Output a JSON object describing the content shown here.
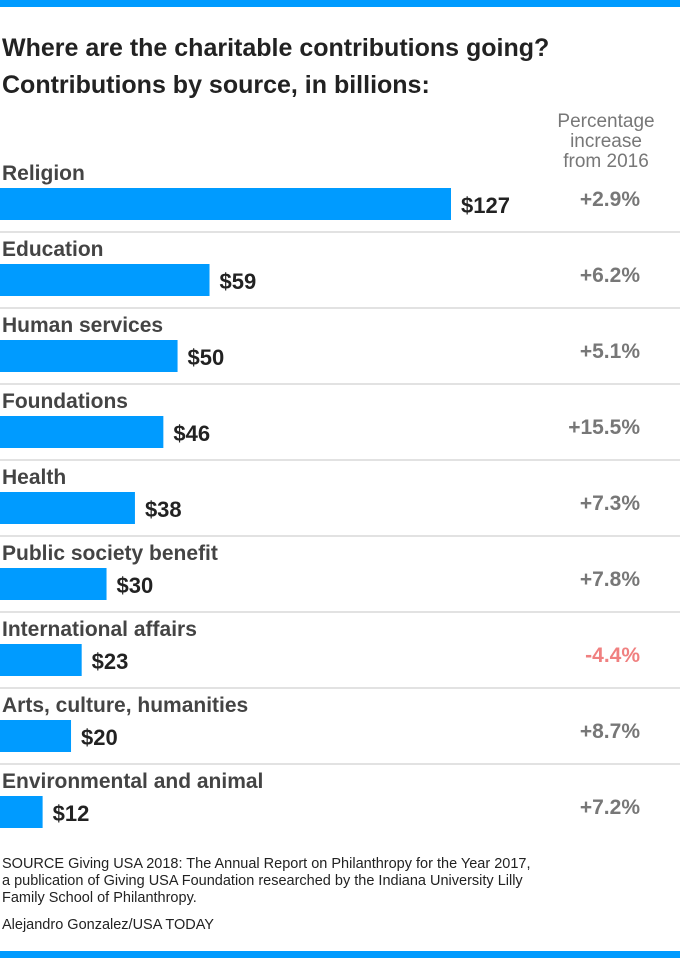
{
  "header": {
    "title_line_1": "Where are the charitable contributions going?",
    "title_line_2": "Contributions by source, in billions:",
    "pct_header": [
      "Percentage",
      "increase",
      "from 2016"
    ]
  },
  "chart_data": {
    "type": "bar",
    "orientation": "horizontal",
    "title": "Contributions by source, in billions:",
    "unit": "billions of dollars",
    "categories": [
      "Religion",
      "Education",
      "Human services",
      "Foundations",
      "Health",
      "Public society benefit",
      "International affairs",
      "Arts, culture, humanities",
      "Environmental and animal"
    ],
    "values": [
      127,
      59,
      50,
      46,
      38,
      30,
      23,
      20,
      12
    ],
    "value_labels": [
      "$127",
      "$59",
      "$50",
      "$46",
      "$38",
      "$30",
      "$23",
      "$20",
      "$12"
    ],
    "pct_change": [
      2.9,
      6.2,
      5.1,
      15.5,
      7.3,
      7.8,
      -4.4,
      8.7,
      7.2
    ],
    "pct_change_labels": [
      "+2.9%",
      "+6.2%",
      "+5.1%",
      "+15.5%",
      "+7.3%",
      "+7.8%",
      "-4.4%",
      "+8.7%",
      "+7.2%"
    ],
    "xlim": [
      0,
      127
    ],
    "grid": false,
    "colors": {
      "bar": "#009bff",
      "positive": "#777777",
      "negative": "#f08080",
      "category_label": "#444444",
      "value_label": "#222222",
      "separator": "#d9d9d9"
    }
  },
  "footer": {
    "source": [
      "SOURCE Giving USA 2018: The Annual Report on Philanthropy for the Year 2017,",
      "a publication of Giving USA Foundation researched by the Indiana University Lilly",
      "Family School of Philanthropy."
    ],
    "credit": "Alejandro Gonzalez/USA TODAY"
  }
}
